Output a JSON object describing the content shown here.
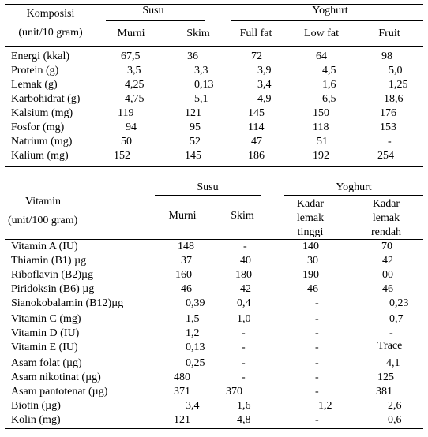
{
  "table1": {
    "header": {
      "label_line1": "Komposisi",
      "label_line2": "(unit/10 gram)",
      "group_susu": "Susu",
      "group_yoghurt": "Yoghurt",
      "columns": [
        "Murni",
        "Skim",
        "Full fat",
        "Low fat",
        "Fruit"
      ]
    },
    "rows": [
      {
        "label": "Energi (kkal)",
        "values": [
          "67,5",
          "36",
          "72",
          "64",
          "98"
        ]
      },
      {
        "label": "Protein (g)",
        "values": [
          "3,5",
          "3,3",
          "3,9",
          "4,5",
          "5,0"
        ]
      },
      {
        "label": "Lemak (g)",
        "values": [
          "4,25",
          "0,13",
          "3,4",
          "1,6",
          "1,25"
        ]
      },
      {
        "label": "Karbohidrat (g)",
        "values": [
          "4,75",
          "5,1",
          "4,9",
          "6,5",
          "18,6"
        ]
      },
      {
        "label": "Kalsium (mg)",
        "values": [
          "119",
          "121",
          "145",
          "150",
          "176"
        ]
      },
      {
        "label": "Fosfor (mg)",
        "values": [
          "94",
          "95",
          "114",
          "118",
          "153"
        ]
      },
      {
        "label": "Natrium (mg)",
        "values": [
          "50",
          "52",
          "47",
          "51",
          "-"
        ]
      },
      {
        "label": "Kalium (mg)",
        "values": [
          "152",
          "145",
          "186",
          "192",
          "254"
        ]
      }
    ]
  },
  "table2": {
    "header": {
      "label_line1": "Vitamin",
      "label_line2": "(unit/100 gram)",
      "group_susu": "Susu",
      "group_yoghurt": "Yoghurt",
      "columns": [
        "Murni",
        "Skim"
      ],
      "col3": [
        "Kadar",
        "lemak",
        "tinggi"
      ],
      "col4": [
        "Kadar",
        "lemak",
        "rendah"
      ]
    },
    "rows": [
      {
        "label": "Vitamin A (IU)",
        "values": [
          "148",
          "-",
          "140",
          "70"
        ]
      },
      {
        "label": "Thiamin (B1) µg",
        "values": [
          "37",
          "40",
          "30",
          "42"
        ]
      },
      {
        "label": "Riboflavin (B2)µg",
        "values": [
          "160",
          "180",
          "190",
          "00"
        ]
      },
      {
        "label": "Piridoksin (B6) µg",
        "values": [
          "46",
          "42",
          "46",
          "46"
        ]
      },
      {
        "label": "Sianokobalamin (B12)µg",
        "values": [
          "0,39",
          "0,4",
          "-",
          "0,23"
        ]
      },
      {
        "label": "Vitamin C (mg)",
        "values": [
          "1,5",
          "1,0",
          "-",
          "0,7"
        ]
      },
      {
        "label": "Vitamin D (IU)",
        "values": [
          "1,2",
          "-",
          "-",
          "-"
        ]
      },
      {
        "label": "Vitamin E (IU)",
        "values": [
          "0,13",
          "-",
          "-",
          "Trace"
        ]
      },
      {
        "label": "Asam folat (µg)",
        "values": [
          "0,25",
          "-",
          "-",
          "4,1"
        ]
      },
      {
        "label": "Asam nikotinat (µg)",
        "values": [
          "480",
          "-",
          "-",
          "125"
        ]
      },
      {
        "label": "Asam pantotenat (µg)",
        "values": [
          "371",
          "370",
          "-",
          "381"
        ]
      },
      {
        "label": "Biotin (µg)",
        "values": [
          "3,4",
          "1,6",
          "1,2",
          "2,6"
        ]
      },
      {
        "label": "Kolin (mg)",
        "values": [
          "121",
          "4,8",
          "-",
          "0,6"
        ]
      }
    ]
  }
}
